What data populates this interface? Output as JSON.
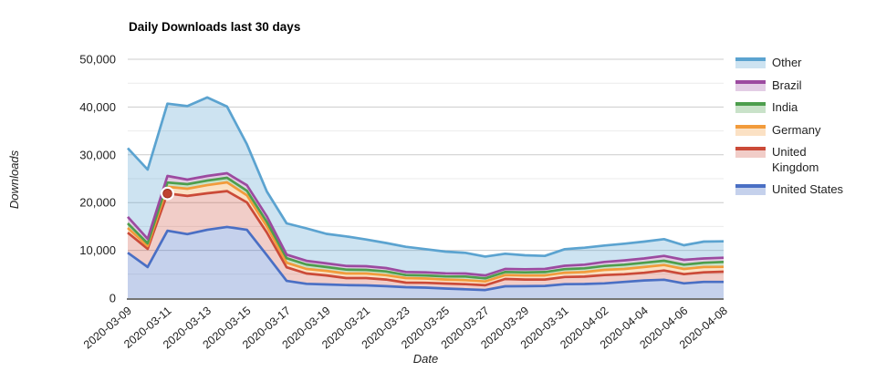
{
  "chart_data": {
    "type": "area",
    "stacked": true,
    "title": "Daily Downloads last 30 days",
    "xlabel": "Date",
    "ylabel": "Downloads",
    "ylim": [
      0,
      50000
    ],
    "y_major_ticks": [
      0,
      10000,
      20000,
      30000,
      40000,
      50000
    ],
    "y_minor_step": 5000,
    "grid": true,
    "legend_position": "right",
    "x": [
      "2020-03-09",
      "2020-03-10",
      "2020-03-11",
      "2020-03-12",
      "2020-03-13",
      "2020-03-14",
      "2020-03-15",
      "2020-03-16",
      "2020-03-17",
      "2020-03-18",
      "2020-03-19",
      "2020-03-20",
      "2020-03-21",
      "2020-03-22",
      "2020-03-23",
      "2020-03-24",
      "2020-03-25",
      "2020-03-26",
      "2020-03-27",
      "2020-03-28",
      "2020-03-29",
      "2020-03-30",
      "2020-03-31",
      "2020-04-01",
      "2020-04-02",
      "2020-04-03",
      "2020-04-04",
      "2020-04-05",
      "2020-04-06",
      "2020-04-07",
      "2020-04-08"
    ],
    "x_tick_labels": [
      "2020-03-09",
      "2020-03-11",
      "2020-03-13",
      "2020-03-15",
      "2020-03-17",
      "2020-03-19",
      "2020-03-21",
      "2020-03-23",
      "2020-03-25",
      "2020-03-27",
      "2020-03-29",
      "2020-03-31",
      "2020-04-02",
      "2020-04-04",
      "2020-04-06",
      "2020-04-08"
    ],
    "series": [
      {
        "name": "United States",
        "color": "#4a6fc4",
        "fill": "rgba(74,111,196,0.32)",
        "values": [
          9500,
          6500,
          14100,
          13400,
          14300,
          14900,
          14300,
          9000,
          3600,
          3000,
          2860,
          2730,
          2670,
          2500,
          2290,
          2200,
          2000,
          1850,
          1700,
          2480,
          2500,
          2550,
          2920,
          2950,
          3100,
          3400,
          3700,
          3850,
          3100,
          3400,
          3400
        ]
      },
      {
        "name": "United Kingdom",
        "color": "#cb4a38",
        "fill": "rgba(203,74,56,0.28)",
        "values": [
          4200,
          3800,
          7800,
          8000,
          7650,
          7500,
          5740,
          4740,
          2850,
          2150,
          1900,
          1470,
          1530,
          1400,
          950,
          1000,
          1050,
          1070,
          1000,
          1530,
          1400,
          1350,
          1500,
          1550,
          1730,
          1600,
          1600,
          1930,
          1920,
          2000,
          2130
        ]
      },
      {
        "name": "Germany",
        "color": "#f29b3b",
        "fill": "rgba(242,155,59,0.30)",
        "values": [
          1000,
          600,
          1400,
          1500,
          1700,
          1840,
          1480,
          1280,
          950,
          950,
          950,
          950,
          950,
          900,
          950,
          900,
          850,
          840,
          800,
          820,
          850,
          850,
          900,
          950,
          1090,
          1100,
          1200,
          1150,
          1090,
          1100,
          1010
        ]
      },
      {
        "name": "India",
        "color": "#4d9e4d",
        "fill": "rgba(77,158,77,0.30)",
        "values": [
          950,
          550,
          900,
          950,
          950,
          960,
          960,
          950,
          950,
          950,
          800,
          820,
          760,
          800,
          630,
          650,
          650,
          760,
          650,
          650,
          650,
          700,
          750,
          800,
          820,
          900,
          900,
          900,
          890,
          900,
          1030
        ]
      },
      {
        "name": "Brazil",
        "color": "#9c4aa0",
        "fill": "rgba(156,74,160,0.28)",
        "values": [
          1350,
          950,
          1370,
          950,
          970,
          950,
          1150,
          1150,
          760,
          760,
          760,
          760,
          760,
          700,
          650,
          650,
          650,
          630,
          600,
          630,
          650,
          650,
          700,
          750,
          840,
          900,
          900,
          1010,
          1020,
          900,
          880
        ]
      },
      {
        "name": "Other",
        "color": "#5ba3d0",
        "fill": "rgba(91,163,208,0.30)",
        "values": [
          14400,
          14500,
          15130,
          15400,
          16430,
          13950,
          8570,
          5200,
          6540,
          6790,
          6180,
          6190,
          5600,
          5250,
          5280,
          4850,
          4530,
          4330,
          3950,
          3190,
          2920,
          2740,
          3480,
          3550,
          3430,
          3490,
          3530,
          3510,
          3050,
          3530,
          3440
        ]
      }
    ],
    "highlight_point": {
      "series": "United Kingdom",
      "x": "2020-03-11",
      "stacked_value": 21900,
      "dot_color": "#bf4330",
      "ring_color": "#ffffff"
    },
    "colors": {
      "grid_major": "#cccccc",
      "grid_minor": "#ebebeb",
      "axis_line": "#757575",
      "tick_text": "#222222",
      "axis_title_text": "#222222"
    }
  }
}
